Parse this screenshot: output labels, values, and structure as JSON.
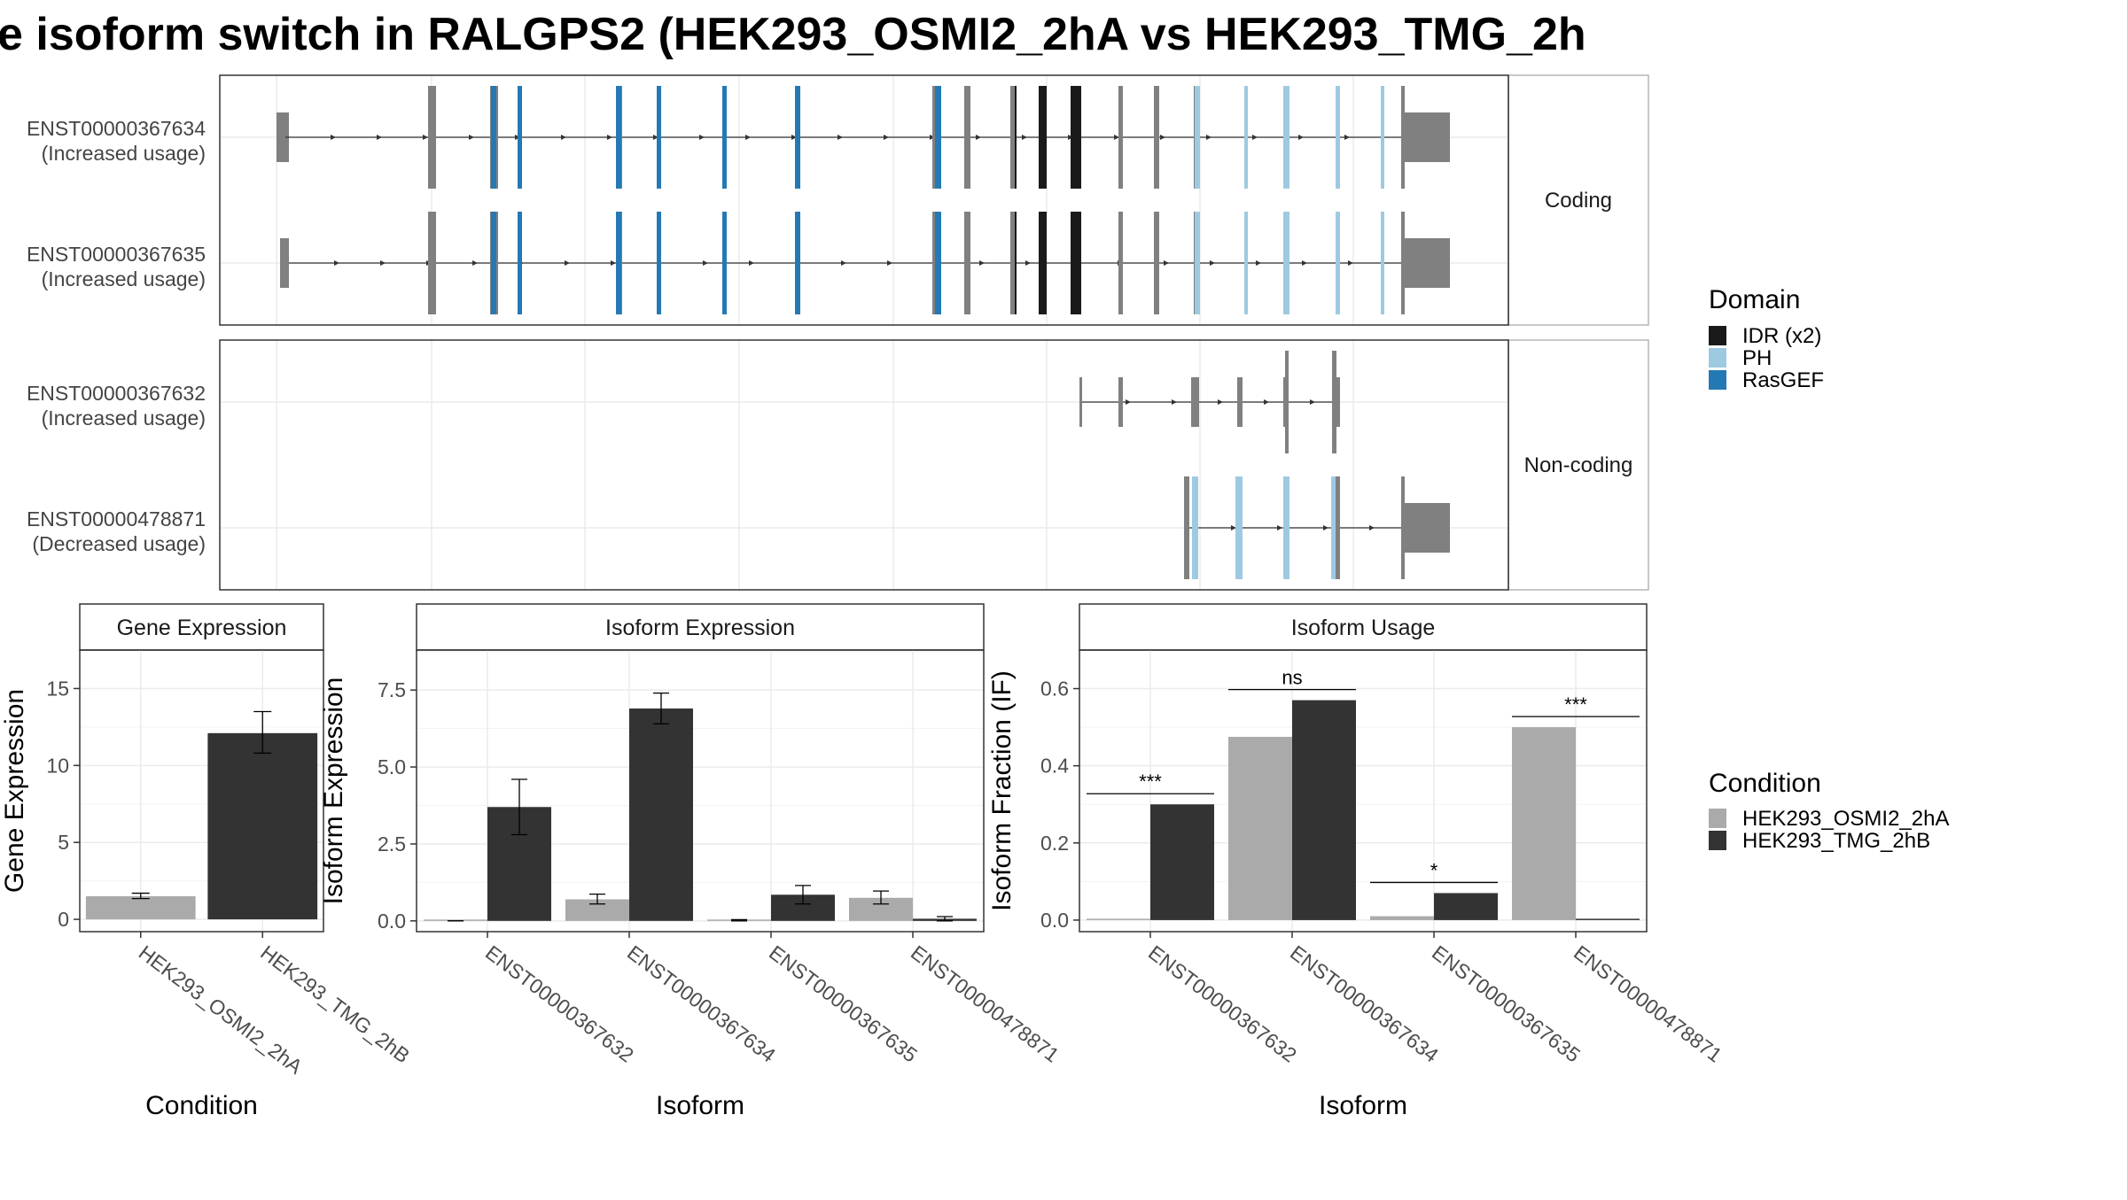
{
  "title": "e isoform switch in RALGPS2 (HEK293_OSMI2_2hA vs HEK293_TMG_2h",
  "colors": {
    "cond1": "#aaaaaa",
    "cond2": "#333333",
    "exon": "#808080",
    "IDR": "#1a1a1a",
    "PH": "#9ecae1",
    "RasGEF": "#2479b5"
  },
  "structure": {
    "facets": [
      "Coding",
      "Non-coding"
    ],
    "isoforms": [
      {
        "id": "ENST00000367634",
        "usage": "(Increased usage)",
        "facet": "Coding"
      },
      {
        "id": "ENST00000367635",
        "usage": "(Increased usage)",
        "facet": "Coding"
      },
      {
        "id": "ENST00000367632",
        "usage": "(Increased usage)",
        "facet": "Non-coding"
      },
      {
        "id": "ENST00000478871",
        "usage": "(Decreased usage)",
        "facet": "Non-coding"
      }
    ],
    "domain_legend_title": "Domain",
    "domains": [
      "IDR (x2)",
      "PH",
      "RasGEF"
    ]
  },
  "condition_legend": {
    "title": "Condition",
    "items": [
      "HEK293_OSMI2_2hA",
      "HEK293_TMG_2hB"
    ]
  },
  "chart_data": [
    {
      "type": "bar",
      "title": "Gene Expression",
      "xlabel": "Condition",
      "ylabel": "Gene Expression",
      "categories": [
        "HEK293_OSMI2_2hA",
        "HEK293_TMG_2hB"
      ],
      "values": [
        1.5,
        12.1
      ],
      "errors": [
        [
          1.35,
          1.7
        ],
        [
          10.8,
          13.5
        ]
      ],
      "ylim": [
        -0.8,
        17.5
      ],
      "yticks": [
        0,
        5,
        10,
        15
      ],
      "grid": true
    },
    {
      "type": "bar",
      "title": "Isoform Expression",
      "xlabel": "Isoform",
      "ylabel": "Isoform Expression",
      "categories": [
        "ENST00000367632",
        "ENST00000367634",
        "ENST00000367635",
        "ENST00000478871"
      ],
      "series": [
        {
          "name": "HEK293_OSMI2_2hA",
          "values": [
            0.0,
            0.7,
            0.02,
            0.75
          ],
          "errors": [
            [
              0.0,
              0.0
            ],
            [
              0.55,
              0.87
            ],
            [
              0.0,
              0.04
            ],
            [
              0.55,
              0.97
            ]
          ]
        },
        {
          "name": "HEK293_TMG_2hB",
          "values": [
            3.7,
            6.9,
            0.85,
            0.07
          ],
          "errors": [
            [
              2.8,
              4.6
            ],
            [
              6.4,
              7.4
            ],
            [
              0.55,
              1.15
            ],
            [
              0.0,
              0.14
            ]
          ]
        }
      ],
      "ylim": [
        -0.35,
        8.8
      ],
      "yticks": [
        0.0,
        2.5,
        5.0,
        7.5
      ],
      "ytick_labels": [
        "0.0",
        "2.5",
        "5.0",
        "7.5"
      ],
      "grid": true
    },
    {
      "type": "bar",
      "title": "Isoform Usage",
      "xlabel": "Isoform",
      "ylabel": "Isoform Fraction (IF)",
      "categories": [
        "ENST00000367632",
        "ENST00000367634",
        "ENST00000367635",
        "ENST00000478871"
      ],
      "series": [
        {
          "name": "HEK293_OSMI2_2hA",
          "values": [
            0.0,
            0.475,
            0.01,
            0.5
          ]
        },
        {
          "name": "HEK293_TMG_2hB",
          "values": [
            0.3,
            0.57,
            0.07,
            0.0
          ]
        }
      ],
      "significance": [
        "***",
        "ns",
        "*",
        "***"
      ],
      "ylim": [
        -0.03,
        0.7
      ],
      "yticks": [
        0.0,
        0.2,
        0.4,
        0.6
      ],
      "ytick_labels": [
        "0.0",
        "0.2",
        "0.4",
        "0.6"
      ],
      "grid": true
    }
  ]
}
